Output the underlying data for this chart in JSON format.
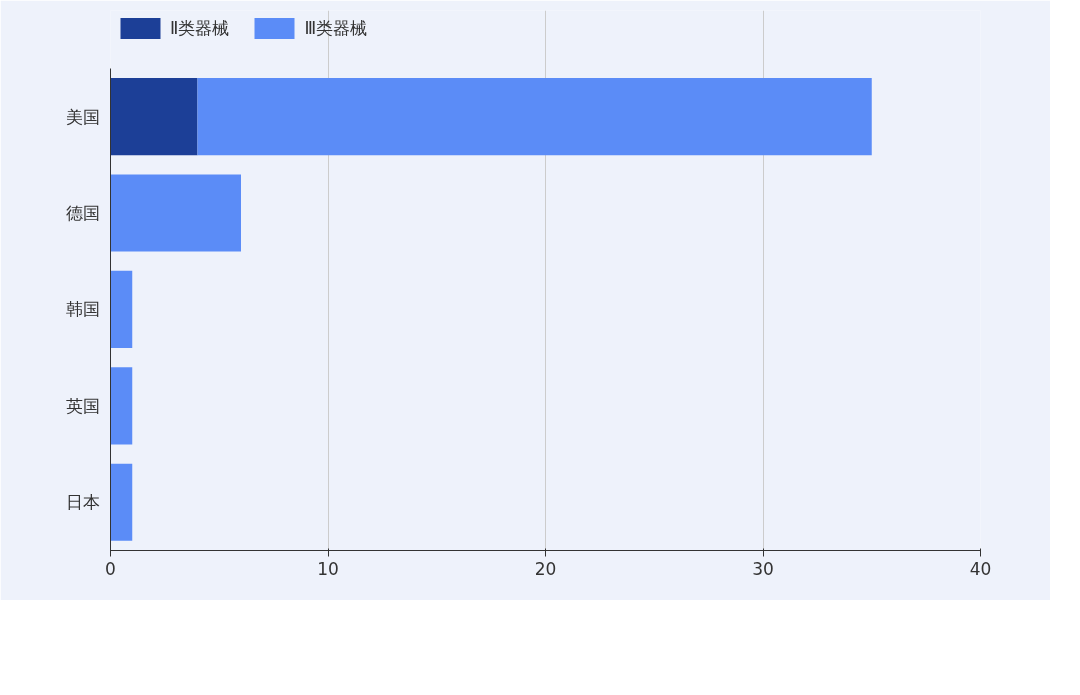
{
  "chart_data": {
    "type": "bar",
    "orientation": "horizontal",
    "stacked": true,
    "categories": [
      "美国",
      "德国",
      "韩国",
      "英国",
      "日本"
    ],
    "series": [
      {
        "name": "Ⅱ类器械",
        "color": "#1c3f97",
        "values": [
          4,
          0,
          0,
          0,
          0
        ]
      },
      {
        "name": "Ⅲ类器械",
        "color": "#5b8cf7",
        "values": [
          31,
          6,
          1,
          1,
          1
        ]
      }
    ],
    "xlim": [
      0,
      40
    ],
    "xticks": [
      0,
      10,
      20,
      30,
      40
    ],
    "grid": "x",
    "legend": "top left"
  }
}
